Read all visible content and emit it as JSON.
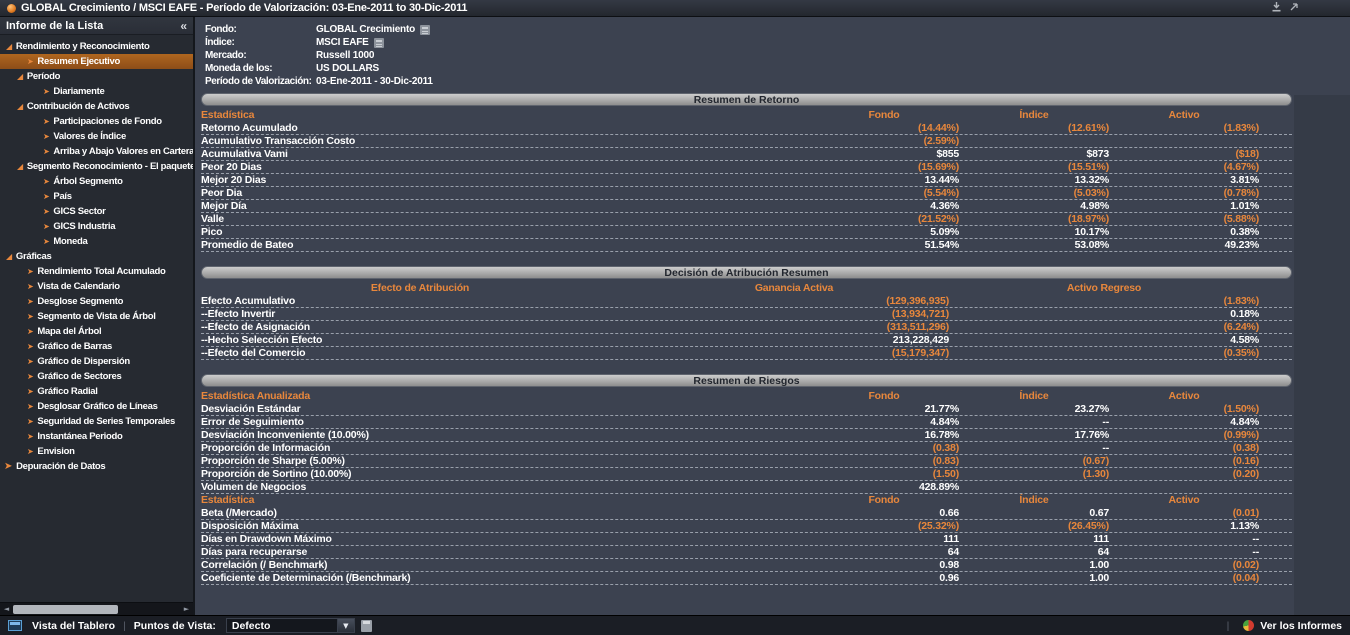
{
  "title_bar": {
    "title": "GLOBAL Crecimiento / MSCI EAFE - Período de Valorización: 03-Ene-2011 to 30-Dic-2011"
  },
  "colors": {
    "accent": "#E8873C",
    "selected_item_bg": "#A05A20",
    "background": "#3C4250",
    "sidebar_background": "#262A31",
    "pill_text": "#22262E",
    "value_text": "#FFFFFF"
  },
  "sidebar": {
    "header": "Informe de la Lista",
    "collapse_glyph": "«",
    "items": [
      {
        "label": "Rendimiento y Reconocimiento",
        "level": 0,
        "kind": "parent"
      },
      {
        "label": "Resumen Ejecutivo",
        "level": 1,
        "kind": "leaf",
        "selected": true
      },
      {
        "label": "Período",
        "level": 1,
        "kind": "parent"
      },
      {
        "label": "Diariamente",
        "level": 2,
        "kind": "leaf"
      },
      {
        "label": "Contribución de Activos",
        "level": 1,
        "kind": "parent"
      },
      {
        "label": "Participaciones de Fondo",
        "level": 2,
        "kind": "leaf"
      },
      {
        "label": "Valores de Índice",
        "level": 2,
        "kind": "leaf"
      },
      {
        "label": "Arriba y Abajo Valores en Cartera",
        "level": 2,
        "kind": "leaf"
      },
      {
        "label": "Segmento Reconocimiento - El paquete",
        "level": 1,
        "kind": "parent"
      },
      {
        "label": "Árbol Segmento",
        "level": 2,
        "kind": "leaf"
      },
      {
        "label": "País",
        "level": 2,
        "kind": "leaf"
      },
      {
        "label": "GICS Sector",
        "level": 2,
        "kind": "leaf"
      },
      {
        "label": "GICS Industria",
        "level": 2,
        "kind": "leaf"
      },
      {
        "label": "Moneda",
        "level": 2,
        "kind": "leaf"
      },
      {
        "label": "Gráficas",
        "level": 0,
        "kind": "parent"
      },
      {
        "label": "Rendimiento Total Acumulado",
        "level": 1,
        "kind": "leaf"
      },
      {
        "label": "Vista de Calendario",
        "level": 1,
        "kind": "leaf"
      },
      {
        "label": "Desglose Segmento",
        "level": 1,
        "kind": "leaf"
      },
      {
        "label": "Segmento de Vista de Árbol",
        "level": 1,
        "kind": "leaf"
      },
      {
        "label": "Mapa del Árbol",
        "level": 1,
        "kind": "leaf"
      },
      {
        "label": "Gráfico de Barras",
        "level": 1,
        "kind": "leaf"
      },
      {
        "label": "Gráfico de Dispersión",
        "level": 1,
        "kind": "leaf"
      },
      {
        "label": "Gráfico de Sectores",
        "level": 1,
        "kind": "leaf"
      },
      {
        "label": "Gráfico Radial",
        "level": 1,
        "kind": "leaf"
      },
      {
        "label": "Desglosar Gráfico de Líneas",
        "level": 1,
        "kind": "leaf"
      },
      {
        "label": "Seguridad de Series Temporales",
        "level": 1,
        "kind": "leaf"
      },
      {
        "label": "Instantánea Periodo",
        "level": 1,
        "kind": "leaf"
      },
      {
        "label": "Envision",
        "level": 1,
        "kind": "leaf"
      },
      {
        "label": "Depuración de Datos",
        "level": 0,
        "kind": "leaf"
      }
    ]
  },
  "info": {
    "rows": [
      {
        "label": "Fondo:",
        "value": "GLOBAL Crecimiento",
        "icon": true
      },
      {
        "label": "Índice:",
        "value": "MSCI EAFE",
        "icon": true
      },
      {
        "label": "Mercado:",
        "value": "Russell 1000",
        "icon": false
      },
      {
        "label": "Moneda de los:",
        "value": "US DOLLARS",
        "icon": false
      },
      {
        "label": "Período de Valorización:",
        "value": "03-Ene-2011 - 30-Dic-2011",
        "icon": false
      }
    ]
  },
  "tables": [
    {
      "title": "Resumen de Retorno",
      "center_label": false,
      "sections": [
        {
          "label": "Estadística",
          "cols": [
            "Fondo",
            "Índice",
            "Activo"
          ],
          "rows": [
            {
              "label": "Retorno Acumulado",
              "values": [
                "(14.44%)",
                "(12.61%)",
                "(1.83%)"
              ]
            },
            {
              "label": "Acumulativo Transacción Costo",
              "values": [
                "(2.59%)",
                "",
                ""
              ]
            },
            {
              "label": "Acumulativa Vami",
              "values": [
                "$855",
                "$873",
                "($18)"
              ]
            },
            {
              "label": "Peor 20 Dias",
              "values": [
                "(15.69%)",
                "(15.51%)",
                "(4.67%)"
              ]
            },
            {
              "label": "Mejor 20 Dias",
              "values": [
                "13.44%",
                "13.32%",
                "3.81%"
              ]
            },
            {
              "label": "Peor Dia",
              "values": [
                "(5.54%)",
                "(5.03%)",
                "(0.78%)"
              ]
            },
            {
              "label": "Mejor Día",
              "values": [
                "4.36%",
                "4.98%",
                "1.01%"
              ]
            },
            {
              "label": "Valle",
              "values": [
                "(21.52%)",
                "(18.97%)",
                "(5.88%)"
              ]
            },
            {
              "label": "Pico",
              "values": [
                "5.09%",
                "10.17%",
                "0.38%"
              ]
            },
            {
              "label": "Promedio de Bateo",
              "values": [
                "51.54%",
                "53.08%",
                "49.23%"
              ]
            }
          ]
        }
      ]
    },
    {
      "title": "Decisión de Atribución Resumen",
      "center_label": true,
      "sections": [
        {
          "label": "Efecto de Atribución",
          "cols": [
            "Ganancia Activa",
            "Activo Regreso"
          ],
          "rows": [
            {
              "label": "Efecto Acumulativo",
              "values": [
                "(129,396,935)",
                "(1.83%)"
              ]
            },
            {
              "label": "--Efecto Invertir",
              "values": [
                "(13,934,721)",
                "0.18%"
              ]
            },
            {
              "label": "--Efecto de Asignación",
              "values": [
                "(313,511,296)",
                "(6.24%)"
              ]
            },
            {
              "label": "--Hecho Selección Efecto",
              "values": [
                "213,228,429",
                "4.58%"
              ]
            },
            {
              "label": "--Efecto del Comercio",
              "values": [
                "(15,179,347)",
                "(0.35%)"
              ]
            }
          ]
        }
      ]
    },
    {
      "title": "Resumen de Riesgos",
      "center_label": false,
      "sections": [
        {
          "label": "Estadística Anualizada",
          "cols": [
            "Fondo",
            "Índice",
            "Activo"
          ],
          "rows": [
            {
              "label": "Desviación Estándar",
              "values": [
                "21.77%",
                "23.27%",
                "(1.50%)"
              ]
            },
            {
              "label": "Error de Seguimiento",
              "values": [
                "4.84%",
                "--",
                "4.84%"
              ]
            },
            {
              "label": "Desviación Inconveniente (10.00%)",
              "values": [
                "16.78%",
                "17.76%",
                "(0.99%)"
              ]
            },
            {
              "label": "Proporción de Información",
              "values": [
                "(0.38)",
                "--",
                "(0.38)"
              ]
            },
            {
              "label": "Proporción de Sharpe (5.00%)",
              "values": [
                "(0.83)",
                "(0.67)",
                "(0.16)"
              ]
            },
            {
              "label": "Proporción de Sortino (10.00%)",
              "values": [
                "(1.50)",
                "(1.30)",
                "(0.20)"
              ]
            },
            {
              "label": "Volumen de Negocios",
              "values": [
                "428.89%",
                "",
                ""
              ]
            }
          ]
        },
        {
          "label": "Estadística",
          "cols": [
            "Fondo",
            "Índice",
            "Activo"
          ],
          "rows": [
            {
              "label": "Beta (/Mercado)",
              "values": [
                "0.66",
                "0.67",
                "(0.01)"
              ]
            },
            {
              "label": "Disposición Máxima",
              "values": [
                "(25.32%)",
                "(26.45%)",
                "1.13%"
              ]
            },
            {
              "label": "Días en Drawdown Máximo",
              "values": [
                "111",
                "111",
                "--"
              ]
            },
            {
              "label": "Días para recuperarse",
              "values": [
                "64",
                "64",
                "--"
              ]
            },
            {
              "label": "Correlación (/ Benchmark)",
              "values": [
                "0.98",
                "1.00",
                "(0.02)"
              ]
            },
            {
              "label": "Coeficiente de Determinación (/Benchmark)",
              "values": [
                "0.96",
                "1.00",
                "(0.04)"
              ]
            }
          ]
        }
      ]
    }
  ],
  "status_bar": {
    "dashboard_label": "Vista del Tablero",
    "viewpoints_label": "Puntos de Vista:",
    "dropdown_value": "Defecto",
    "reports_label": "Ver los Informes"
  }
}
